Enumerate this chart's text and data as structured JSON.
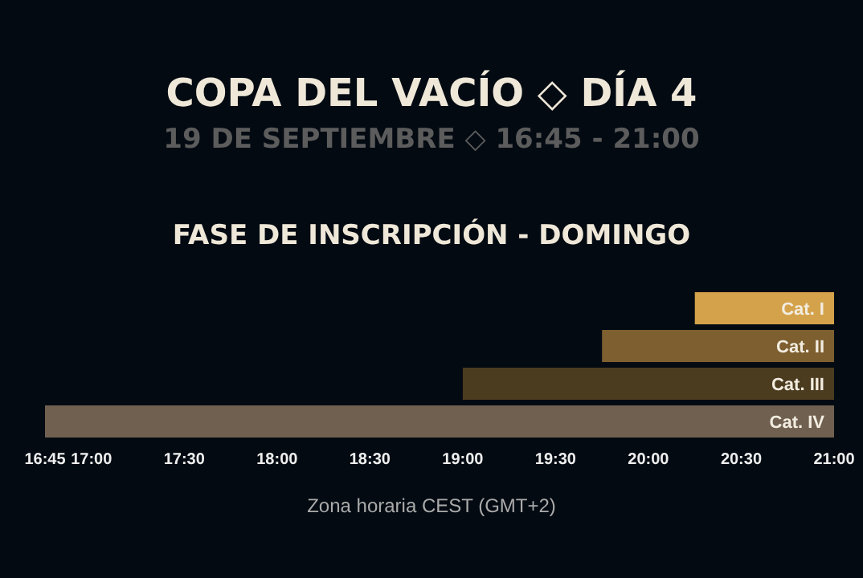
{
  "chart_data": {
    "type": "bar",
    "orientation": "horizontal",
    "title": "COPA DEL VACÍO ◇ DÍA 4",
    "subtitle": "19 DE SEPTIEMBRE ◇ 16:45 - 21:00",
    "annotations": [
      "FASE DE INSCRIPCIÓN - DOMINGO"
    ],
    "xlabel": "Zona horaria CEST (GMT+2)",
    "categories": [
      "Cat. I",
      "Cat. II",
      "Cat. III",
      "Cat. IV"
    ],
    "base": [
      20.25,
      19.75,
      19,
      16.75
    ],
    "values": [
      0.75,
      1.25,
      2,
      4.25
    ],
    "colors": [
      "#d4a24a",
      "#7d5f30",
      "#4b3b1f",
      "#706050"
    ],
    "xlim": [
      16.75,
      21
    ],
    "xticks": [
      {
        "value": 16.75,
        "label": "16:45"
      },
      {
        "value": 17,
        "label": "17:00"
      },
      {
        "value": 17.5,
        "label": "17:30"
      },
      {
        "value": 18,
        "label": "18:00"
      },
      {
        "value": 18.5,
        "label": "18:30"
      },
      {
        "value": 19,
        "label": "19:00"
      },
      {
        "value": 19.5,
        "label": "19:30"
      },
      {
        "value": 20,
        "label": "20:00"
      },
      {
        "value": 20.5,
        "label": "20:30"
      },
      {
        "value": 21,
        "label": "21:00"
      }
    ],
    "grid": false,
    "legend": false
  }
}
